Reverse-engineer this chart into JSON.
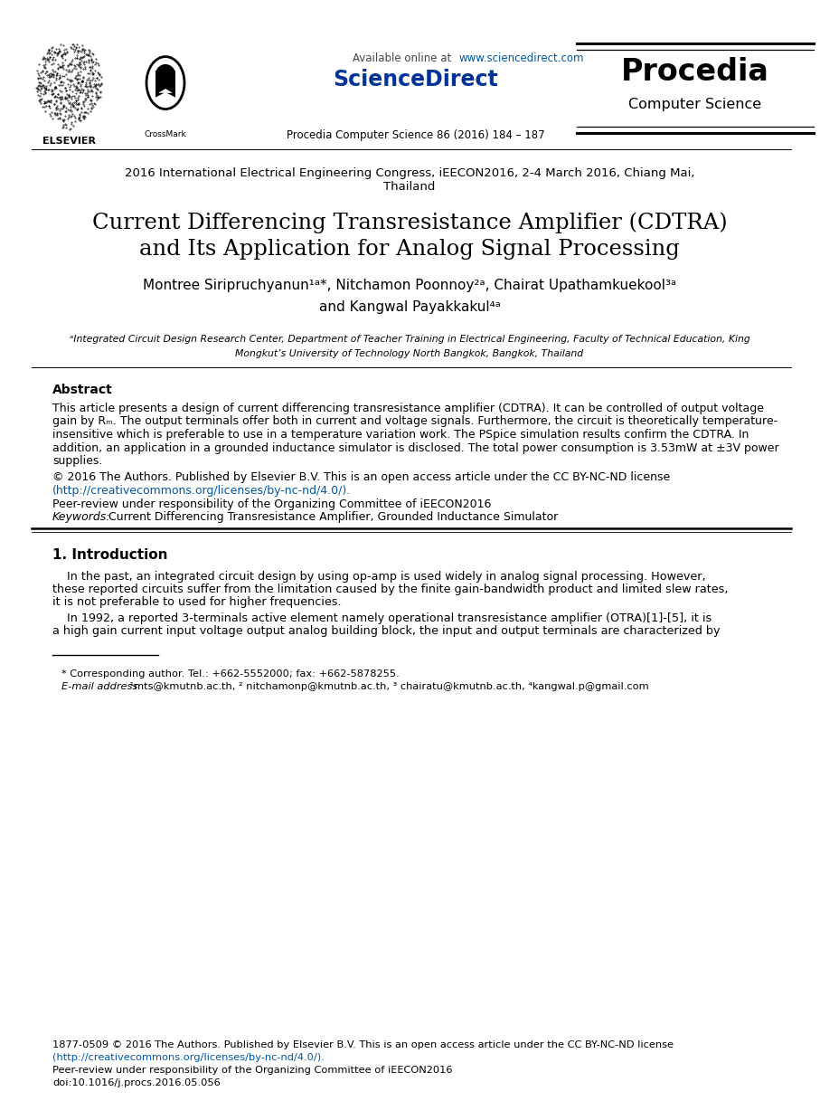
{
  "bg_color": "#ffffff",
  "available_online_plain": "Available online at ",
  "available_online_url": "www.sciencedirect.com",
  "sciencedirect_text": "ScienceDirect",
  "journal_line": "Procedia Computer Science 86 (2016) 184 – 187",
  "procedia_title": "Procedia",
  "procedia_subtitle": "Computer Science",
  "elsevier_text": "ELSEVIER",
  "conference": "2016 International Electrical Engineering Congress, iEECON2016, 2-4 March 2016, Chiang Mai,\nThailand",
  "paper_title_line1": "Current Differencing Transresistance Amplifier (CDTRA)",
  "paper_title_line2": "and Its Application for Analog Signal Processing",
  "authors_line1": "Montree Siripruchyanun¹ᵃ*, Nitchamon Poonnoy²ᵃ, Chairat Upathamkuekool³ᵃ",
  "authors_line2": "and Kangwal Payakkakul⁴ᵃ",
  "affil_line1": "ᵃIntegrated Circuit Design Research Center, Department of Teacher Training in Electrical Engineering, Faculty of Technical Education, King",
  "affil_line2": "Mongkut’s University of Technology North Bangkok, Bangkok, Thailand",
  "abstract_title": "Abstract",
  "abstract_body_line1": "This article presents a design of current differencing transresistance amplifier (CDTRA). It can be controlled of output voltage",
  "abstract_body_line2": "gain by Rₘ. The output terminals offer both in current and voltage signals. Furthermore, the circuit is theoretically temperature-",
  "abstract_body_line3": "insensitive which is preferable to use in a temperature variation work. The PSpice simulation results confirm the CDTRA. In",
  "abstract_body_line4": "addition, an application in a grounded inductance simulator is disclosed. The total power consumption is 3.53mW at ±3V power",
  "abstract_body_line5": "supplies.",
  "copyright_line": "© 2016 The Authors. Published by Elsevier B.V. This is an open access article under the CC BY-NC-ND license",
  "license_url": "(http://creativecommons.org/licenses/by-nc-nd/4.0/).",
  "peer_review": "Peer-review under responsibility of the Organizing Committee of iEECON2016",
  "keywords_label": "Keywords:",
  "keywords_text": " Current Differencing Transresistance Amplifier, Grounded Inductance Simulator",
  "intro_title": "1. Introduction",
  "intro_indent": "    In the past, an integrated circuit design by using op-amp is used widely in analog signal processing. However,",
  "intro_line2": "these reported circuits suffer from the limitation caused by the finite gain-bandwidth product and limited slew rates,",
  "intro_line3": "it is not preferable to used for higher frequencies.",
  "intro2_indent": "    In 1992, a reported 3-terminals active element namely operational transresistance amplifier (OTRA)[1]-[5], it is",
  "intro2_line2": "a high gain current input voltage output analog building block, the input and output terminals are characterized by",
  "footnote_star": "* Corresponding author. Tel.: +662-5552000; fax: +662-5878255.",
  "footnote_email_label": "E-mail address:",
  "footnote_email_body": " ¹mts@kmutnb.ac.th, ² nitchamonp@kmutnb.ac.th, ³ chairatu@kmutnb.ac.th, ⁴kangwal.p@gmail.com",
  "footer_line1": "1877-0509 © 2016 The Authors. Published by Elsevier B.V. This is an open access article under the CC BY-NC-ND license",
  "footer_url": "(http://creativecommons.org/licenses/by-nc-nd/4.0/).",
  "footer_peer": "Peer-review under responsibility of the Organizing Committee of iEECON2016",
  "footer_doi": "doi:10.1016/j.procs.2016.05.056",
  "url_color": "#0057a8",
  "scidir_color": "#1a1aff",
  "text_color": "#000000",
  "gray_color": "#444444"
}
